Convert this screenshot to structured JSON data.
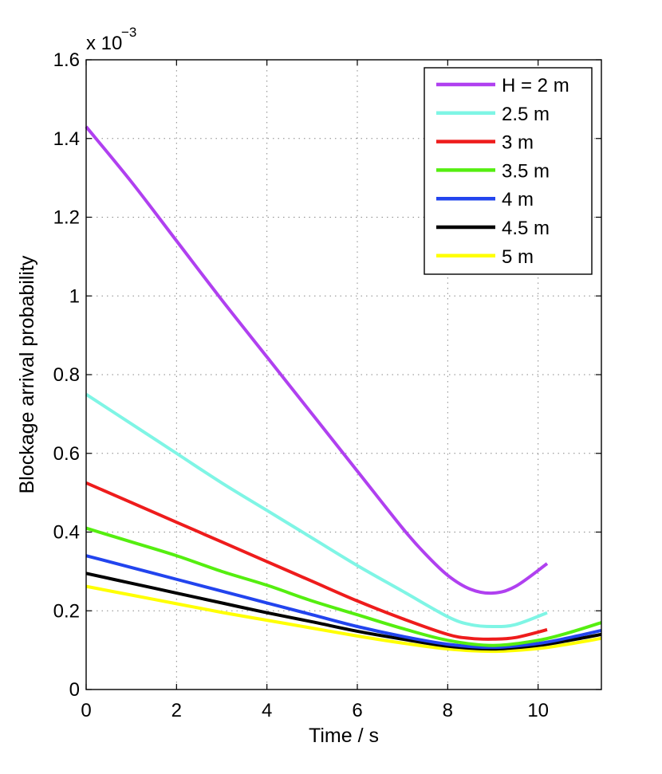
{
  "chart_data": {
    "type": "line",
    "title": "",
    "xlabel": "Time / s",
    "ylabel": "Blockage arrival probability",
    "y_scale_prefix": "x 10",
    "y_scale_exponent": "−3",
    "xlim": [
      0,
      11.4
    ],
    "ylim": [
      0,
      1.6
    ],
    "grid": true,
    "legend_position": "top-right",
    "x_ticks": [
      0,
      2,
      4,
      6,
      8,
      10
    ],
    "x_tick_labels": [
      "0",
      "2",
      "4",
      "6",
      "8",
      "10"
    ],
    "y_ticks": [
      0,
      0.2,
      0.4,
      0.6,
      0.8,
      1.0,
      1.2,
      1.4,
      1.6
    ],
    "y_tick_labels": [
      "0",
      "0.2",
      "0.4",
      "0.6",
      "0.8",
      "1",
      "1.2",
      "1.4",
      "1.6"
    ],
    "series": [
      {
        "name": "H = 2 m",
        "color": "#b040f0",
        "x": [
          0,
          1,
          2,
          3,
          4,
          5,
          6,
          7,
          7.5,
          8,
          8.5,
          9,
          9.5,
          10.2
        ],
        "values": [
          1.43,
          1.29,
          1.14,
          0.99,
          0.845,
          0.7,
          0.555,
          0.41,
          0.345,
          0.29,
          0.255,
          0.245,
          0.262,
          0.32
        ]
      },
      {
        "name": "2.5 m",
        "color": "#7ff5e5",
        "x": [
          0,
          1,
          2,
          3,
          4,
          5,
          6,
          7,
          8,
          8.5,
          9,
          9.5,
          10.2
        ],
        "values": [
          0.75,
          0.675,
          0.6,
          0.525,
          0.455,
          0.385,
          0.315,
          0.25,
          0.185,
          0.165,
          0.16,
          0.165,
          0.195
        ]
      },
      {
        "name": "3 m",
        "color": "#ee1c1c",
        "x": [
          0,
          1,
          2,
          3,
          4,
          5,
          6,
          7,
          8,
          8.5,
          9,
          9.5,
          10.2
        ],
        "values": [
          0.525,
          0.475,
          0.425,
          0.375,
          0.325,
          0.275,
          0.225,
          0.18,
          0.14,
          0.13,
          0.128,
          0.132,
          0.152
        ]
      },
      {
        "name": "3.5 m",
        "color": "#55ee10",
        "x": [
          0,
          1,
          2,
          3,
          4,
          5,
          6,
          7,
          8,
          9,
          10,
          10.7,
          11.4
        ],
        "values": [
          0.41,
          0.375,
          0.34,
          0.3,
          0.265,
          0.225,
          0.19,
          0.155,
          0.125,
          0.112,
          0.125,
          0.145,
          0.17
        ]
      },
      {
        "name": "4 m",
        "color": "#2244ee",
        "x": [
          0,
          1,
          2,
          3,
          4,
          5,
          6,
          7,
          8,
          9,
          10,
          10.7,
          11.4
        ],
        "values": [
          0.34,
          0.31,
          0.28,
          0.25,
          0.22,
          0.19,
          0.16,
          0.135,
          0.115,
          0.107,
          0.117,
          0.132,
          0.15
        ]
      },
      {
        "name": "4.5 m",
        "color": "#000000",
        "x": [
          0,
          1,
          2,
          3,
          4,
          5,
          6,
          7,
          8,
          9,
          10,
          10.7,
          11.4
        ],
        "values": [
          0.295,
          0.27,
          0.245,
          0.22,
          0.195,
          0.172,
          0.148,
          0.128,
          0.11,
          0.103,
          0.112,
          0.125,
          0.14
        ]
      },
      {
        "name": "5 m",
        "color": "#ffff00",
        "x": [
          0,
          1,
          2,
          3,
          4,
          5,
          6,
          7,
          8,
          9,
          10,
          10.7,
          11.4
        ],
        "values": [
          0.262,
          0.24,
          0.218,
          0.196,
          0.176,
          0.156,
          0.136,
          0.118,
          0.103,
          0.097,
          0.104,
          0.116,
          0.13
        ]
      }
    ]
  }
}
